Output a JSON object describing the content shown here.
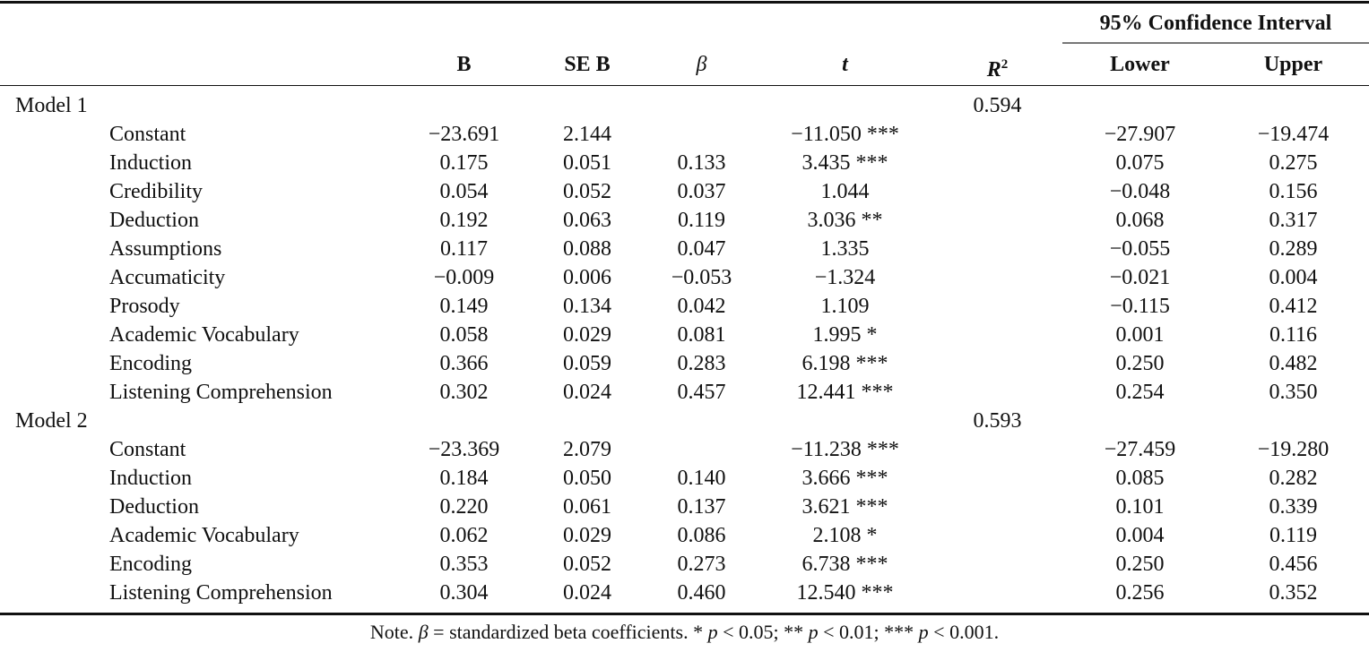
{
  "header": {
    "ci_label": "95% Confidence Interval",
    "columns": [
      "B",
      "SE B",
      "β",
      "t",
      "R",
      "Lower",
      "Upper"
    ],
    "r2_superscript": "2"
  },
  "rows": [
    {
      "type": "model",
      "label": "Model 1",
      "r2": "0.594"
    },
    {
      "type": "var",
      "label": "Constant",
      "b": "−23.691",
      "se": "2.144",
      "beta": "",
      "t": "−11.050 ***",
      "lower": "−27.907",
      "upper": "−19.474"
    },
    {
      "type": "var",
      "label": "Induction",
      "b": "0.175",
      "se": "0.051",
      "beta": "0.133",
      "t": "3.435 ***",
      "lower": "0.075",
      "upper": "0.275"
    },
    {
      "type": "var",
      "label": "Credibility",
      "b": "0.054",
      "se": "0.052",
      "beta": "0.037",
      "t": "1.044",
      "lower": "−0.048",
      "upper": "0.156"
    },
    {
      "type": "var",
      "label": "Deduction",
      "b": "0.192",
      "se": "0.063",
      "beta": "0.119",
      "t": "3.036 **",
      "lower": "0.068",
      "upper": "0.317"
    },
    {
      "type": "var",
      "label": "Assumptions",
      "b": "0.117",
      "se": "0.088",
      "beta": "0.047",
      "t": "1.335",
      "lower": "−0.055",
      "upper": "0.289"
    },
    {
      "type": "var",
      "label": "Accumaticity",
      "b": "−0.009",
      "se": "0.006",
      "beta": "−0.053",
      "t": "−1.324",
      "lower": "−0.021",
      "upper": "0.004"
    },
    {
      "type": "var",
      "label": "Prosody",
      "b": "0.149",
      "se": "0.134",
      "beta": "0.042",
      "t": "1.109",
      "lower": "−0.115",
      "upper": "0.412"
    },
    {
      "type": "var",
      "label": "Academic Vocabulary",
      "b": "0.058",
      "se": "0.029",
      "beta": "0.081",
      "t": "1.995 *",
      "lower": "0.001",
      "upper": "0.116"
    },
    {
      "type": "var",
      "label": "Encoding",
      "b": "0.366",
      "se": "0.059",
      "beta": "0.283",
      "t": "6.198 ***",
      "lower": "0.250",
      "upper": "0.482"
    },
    {
      "type": "var",
      "label": "Listening Comprehension",
      "b": "0.302",
      "se": "0.024",
      "beta": "0.457",
      "t": "12.441 ***",
      "lower": "0.254",
      "upper": "0.350"
    },
    {
      "type": "model",
      "label": "Model 2",
      "r2": "0.593"
    },
    {
      "type": "var",
      "label": "Constant",
      "b": "−23.369",
      "se": "2.079",
      "beta": "",
      "t": "−11.238 ***",
      "lower": "−27.459",
      "upper": "−19.280"
    },
    {
      "type": "var",
      "label": "Induction",
      "b": "0.184",
      "se": "0.050",
      "beta": "0.140",
      "t": "3.666 ***",
      "lower": "0.085",
      "upper": "0.282"
    },
    {
      "type": "var",
      "label": "Deduction",
      "b": "0.220",
      "se": "0.061",
      "beta": "0.137",
      "t": "3.621 ***",
      "lower": "0.101",
      "upper": "0.339"
    },
    {
      "type": "var",
      "label": "Academic Vocabulary",
      "b": "0.062",
      "se": "0.029",
      "beta": "0.086",
      "t": "2.108 *",
      "lower": "0.004",
      "upper": "0.119"
    },
    {
      "type": "var",
      "label": "Encoding",
      "b": "0.353",
      "se": "0.052",
      "beta": "0.273",
      "t": "6.738 ***",
      "lower": "0.250",
      "upper": "0.456"
    },
    {
      "type": "var",
      "label": "Listening Comprehension",
      "b": "0.304",
      "se": "0.024",
      "beta": "0.460",
      "t": "12.540 ***",
      "lower": "0.256",
      "upper": "0.352"
    }
  ],
  "note": {
    "prefix": "Note. ",
    "beta": "β",
    "text1": " = standardized beta coefficients. * ",
    "p": "p",
    "t1": " < 0.05; ** ",
    "t2": " < 0.01; *** ",
    "t3": " < 0.001."
  }
}
